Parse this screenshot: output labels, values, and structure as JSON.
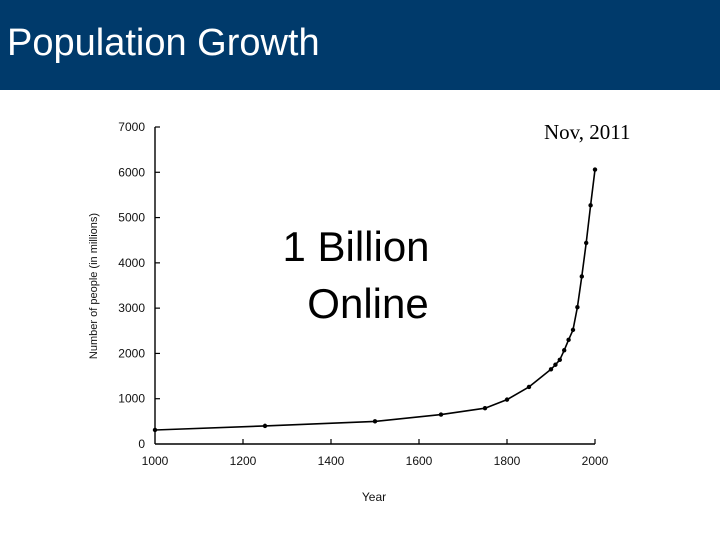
{
  "slide": {
    "title": "Population Growth",
    "date_note": "Nov, 2011",
    "overlay_line1": "1 Billion",
    "overlay_line2": "Online"
  },
  "colors": {
    "title_bar": "#003a6b",
    "title_text": "#ffffff",
    "series": "#000000"
  },
  "chart_data": {
    "type": "line",
    "title": "",
    "xlabel": "Year",
    "ylabel": "Number of people (in millions)",
    "xlim": [
      1000,
      2000
    ],
    "ylim": [
      0,
      7000
    ],
    "x_ticks": [
      1000,
      1200,
      1400,
      1600,
      1800,
      2000
    ],
    "y_ticks": [
      0,
      1000,
      2000,
      3000,
      4000,
      5000,
      6000,
      7000
    ],
    "grid": false,
    "legend": "none",
    "series": [
      {
        "points": [
          [
            1000,
            310
          ],
          [
            1250,
            400
          ],
          [
            1500,
            500
          ],
          [
            1650,
            650
          ],
          [
            1750,
            790
          ],
          [
            1800,
            980
          ],
          [
            1850,
            1260
          ],
          [
            1900,
            1650
          ],
          [
            1910,
            1750
          ],
          [
            1920,
            1860
          ],
          [
            1930,
            2070
          ],
          [
            1940,
            2300
          ],
          [
            1950,
            2520
          ],
          [
            1960,
            3020
          ],
          [
            1970,
            3700
          ],
          [
            1980,
            4440
          ],
          [
            1990,
            5270
          ],
          [
            2000,
            6060
          ]
        ]
      }
    ]
  }
}
